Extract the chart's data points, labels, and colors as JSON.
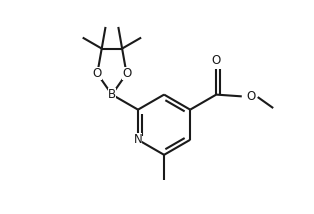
{
  "bg_color": "#ffffff",
  "line_color": "#1a1a1a",
  "line_width": 1.5,
  "font_size": 8.5,
  "fig_width": 3.14,
  "fig_height": 2.14,
  "dpi": 100,
  "xlim": [
    -2.5,
    4.5
  ],
  "ylim": [
    -2.8,
    3.2
  ]
}
